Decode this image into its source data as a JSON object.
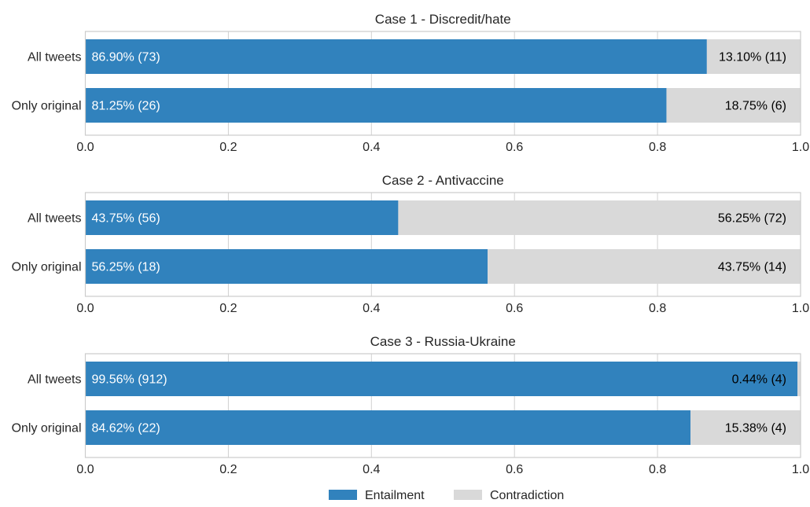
{
  "chart_data": [
    {
      "type": "bar",
      "orientation": "horizontal",
      "stacked": true,
      "normalized": true,
      "title": "Case 1 - Discredit/hate",
      "categories": [
        "All tweets",
        "Only original"
      ],
      "series": [
        {
          "name": "Entailment",
          "values": [
            0.869,
            0.8125
          ],
          "labels": [
            "86.90% (73)",
            "81.25% (26)"
          ]
        },
        {
          "name": "Contradiction",
          "values": [
            0.131,
            0.1875
          ],
          "labels": [
            "13.10% (11)",
            "18.75% (6)"
          ]
        }
      ],
      "xlim": [
        0,
        1
      ],
      "xticks": [
        "0.0",
        "0.2",
        "0.4",
        "0.6",
        "0.8",
        "1.0"
      ],
      "grid": true
    },
    {
      "type": "bar",
      "orientation": "horizontal",
      "stacked": true,
      "normalized": true,
      "title": "Case 2 - Antivaccine",
      "categories": [
        "All tweets",
        "Only original"
      ],
      "series": [
        {
          "name": "Entailment",
          "values": [
            0.4375,
            0.5625
          ],
          "labels": [
            "43.75% (56)",
            "56.25% (18)"
          ]
        },
        {
          "name": "Contradiction",
          "values": [
            0.5625,
            0.4375
          ],
          "labels": [
            "56.25% (72)",
            "43.75% (14)"
          ]
        }
      ],
      "xlim": [
        0,
        1
      ],
      "xticks": [
        "0.0",
        "0.2",
        "0.4",
        "0.6",
        "0.8",
        "1.0"
      ],
      "grid": true
    },
    {
      "type": "bar",
      "orientation": "horizontal",
      "stacked": true,
      "normalized": true,
      "title": "Case 3 - Russia-Ukraine",
      "categories": [
        "All tweets",
        "Only original"
      ],
      "series": [
        {
          "name": "Entailment",
          "values": [
            0.9956,
            0.8462
          ],
          "labels": [
            "99.56% (912)",
            "84.62% (22)"
          ]
        },
        {
          "name": "Contradiction",
          "values": [
            0.0044,
            0.1538
          ],
          "labels": [
            "0.44% (4)",
            "15.38% (4)"
          ]
        }
      ],
      "xlim": [
        0,
        1
      ],
      "xticks": [
        "0.0",
        "0.2",
        "0.4",
        "0.6",
        "0.8",
        "1.0"
      ],
      "grid": true
    }
  ],
  "legend": {
    "placement": "bottom-center",
    "items": [
      {
        "name": "Entailment",
        "color": "#3182bd"
      },
      {
        "name": "Contradiction",
        "color": "#d9d9d9"
      }
    ]
  },
  "colors": {
    "entailment": "#3182bd",
    "contradiction": "#d9d9d9",
    "entailment_text": "#ffffff",
    "contradiction_text": "#000000",
    "grid": "#d0d0d0",
    "frame": "#cccccc",
    "axis_text": "#262626"
  }
}
